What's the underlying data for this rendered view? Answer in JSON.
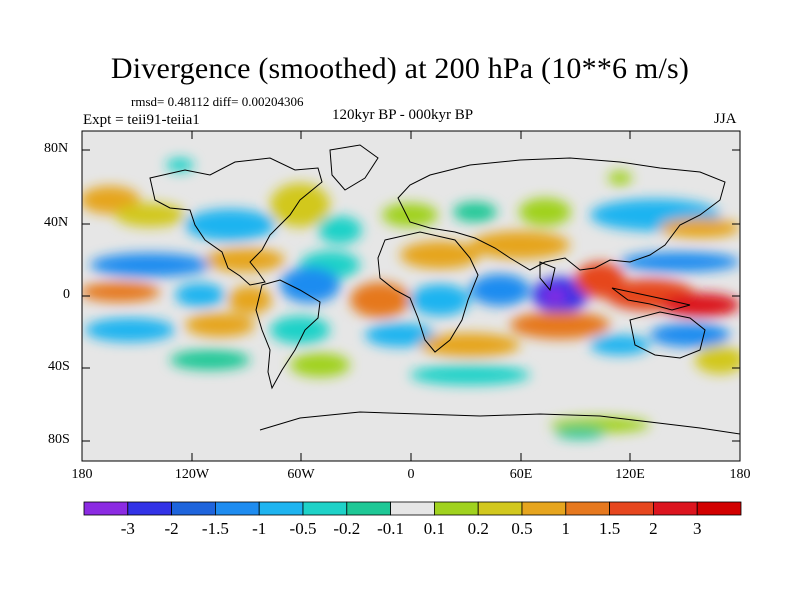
{
  "title": "Divergence (smoothed) at 200 hPa (10**6 m/s)",
  "stats": "rmsd= 0.48112 diff= 0.00204306",
  "experiment": "Expt = teii91-teiia1",
  "period": "120kyr BP - 000kyr BP",
  "season": "JJA",
  "lat_labels": [
    "80N",
    "40N",
    "0",
    "40S",
    "80S"
  ],
  "lon_labels": [
    "180",
    "120W",
    "60W",
    "0",
    "60E",
    "120E",
    "180"
  ],
  "colorbar": {
    "labels": [
      "-3",
      "-2",
      "-1.5",
      "-1",
      "-0.5",
      "-0.2",
      "-0.1",
      "0.1",
      "0.2",
      "0.5",
      "1",
      "1.5",
      "2",
      "3"
    ],
    "colors": [
      "#8b2be2",
      "#3232e6",
      "#1e64dc",
      "#1e8cf0",
      "#1eb4f0",
      "#1ed2c8",
      "#1ec896",
      "#e6e6e6",
      "#a0d21e",
      "#d2c81e",
      "#e6a51e",
      "#e6781e",
      "#e6461e",
      "#dc141e",
      "#d20000"
    ]
  },
  "colors": {
    "background": "#e6e6e6",
    "coastline": "#000000"
  }
}
